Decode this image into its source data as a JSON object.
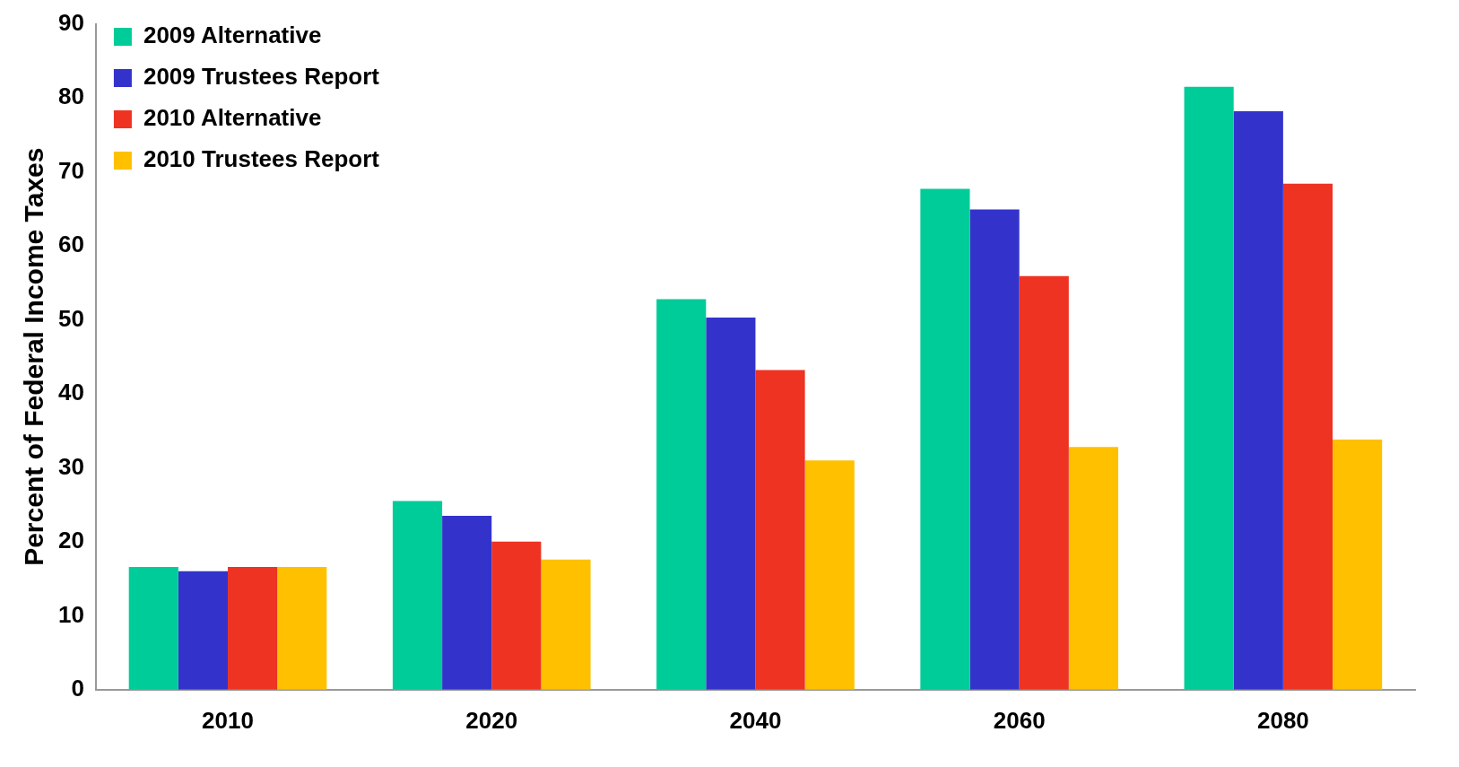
{
  "chart_data": {
    "type": "bar",
    "ylabel": "Percent of Federal Income Taxes",
    "categories": [
      "2010",
      "2020",
      "2040",
      "2060",
      "2080"
    ],
    "series": [
      {
        "name": "2009 Alternative",
        "color": "#00cc99",
        "values": [
          16.6,
          25.5,
          52.8,
          67.7,
          81.5
        ]
      },
      {
        "name": "2009 Trustees Report",
        "color": "#3333cc",
        "values": [
          16,
          23.5,
          50.3,
          64.9,
          78.2
        ]
      },
      {
        "name": "2010 Alternative",
        "color": "#ee3322",
        "values": [
          16.6,
          20,
          43.2,
          55.9,
          68.4
        ]
      },
      {
        "name": "2010 Trustees Report",
        "color": "#ffc000",
        "values": [
          16.6,
          17.6,
          31,
          32.8,
          33.8
        ]
      }
    ],
    "ylim": [
      0,
      90
    ],
    "yticks": [
      0,
      10,
      20,
      30,
      40,
      50,
      60,
      70,
      80,
      90
    ],
    "grid": false,
    "legend": "top left"
  }
}
